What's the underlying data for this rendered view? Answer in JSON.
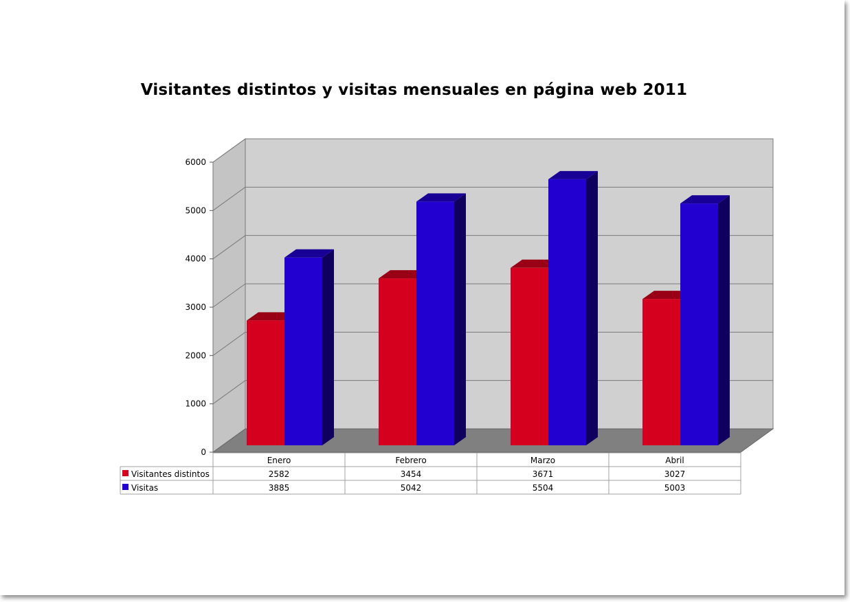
{
  "chart_data": {
    "type": "bar",
    "title": "Visitantes distintos y visitas mensuales en página web 2011",
    "categories": [
      "Enero",
      "Febrero",
      "Marzo",
      "Abril"
    ],
    "series": [
      {
        "name": "Visitantes distintos",
        "values": [
          2582,
          3454,
          3671,
          3027
        ],
        "color": "#d4001d",
        "value_labels": [
          "2582",
          "3454",
          "3671",
          "3027"
        ]
      },
      {
        "name": "Visitas",
        "values": [
          3885,
          5042,
          5504,
          5003
        ],
        "color": "#2200d0",
        "value_labels": [
          "3885",
          "5042",
          "5504",
          "5003"
        ]
      }
    ],
    "ylim": [
      0,
      6000
    ],
    "yticks": [
      "0",
      "1000",
      "2000",
      "3000",
      "4000",
      "5000",
      "6000"
    ],
    "grid": true,
    "style": "3d-bar",
    "legend": "data table below chart",
    "wall_color": "#d0d0d0",
    "floor_color": "#808080"
  }
}
